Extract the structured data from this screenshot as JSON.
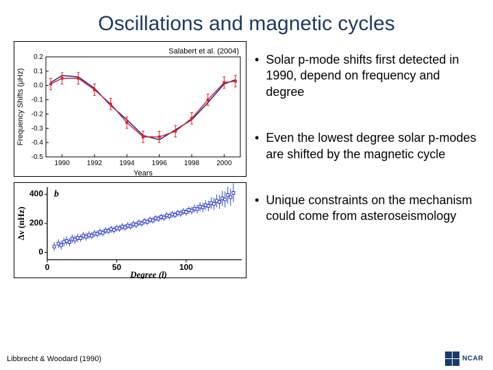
{
  "title": "Oscillations and magnetic cycles",
  "citations": {
    "chart1": "Salabert et al. (2004)",
    "bottom": "Libbrecht & Woodard (1990)"
  },
  "bullets": [
    "Solar p-mode shifts first detected in 1990, depend on frequency and degree",
    "Even the lowest degree solar p-modes are shifted by the magnetic cycle",
    "Unique constraints on the mechanism could come from asteroseismology"
  ],
  "chart1": {
    "type": "line-errorbar",
    "xlabel": "Years",
    "ylabel": "Frequency Shifts (μHz)",
    "xlim": [
      1989,
      2001
    ],
    "ylim": [
      -0.5,
      0.2
    ],
    "xticks": [
      1990,
      1992,
      1994,
      1996,
      1998,
      2000
    ],
    "yticks": [
      -0.5,
      -0.4,
      -0.3,
      -0.2,
      -0.1,
      0.0,
      0.1,
      0.2
    ],
    "series_blue": {
      "color": "#1020a0",
      "x": [
        1989.3,
        1990.0,
        1991.0,
        1992.0,
        1993.0,
        1994.0,
        1995.0,
        1996.0,
        1997.0,
        1998.0,
        1999.0,
        2000.0,
        2000.7
      ],
      "y": [
        0.02,
        0.07,
        0.06,
        -0.02,
        -0.14,
        -0.24,
        -0.35,
        -0.38,
        -0.31,
        -0.24,
        -0.12,
        0.01,
        0.04
      ]
    },
    "series_red": {
      "color": "#e02020",
      "marker": "square",
      "marker_size": 4,
      "err": 0.04,
      "x": [
        1989.3,
        1990.0,
        1991.0,
        1992.0,
        1993.0,
        1994.0,
        1995.0,
        1996.0,
        1997.0,
        1998.0,
        1999.0,
        2000.0,
        2000.7
      ],
      "y": [
        0.01,
        0.05,
        0.05,
        -0.03,
        -0.13,
        -0.26,
        -0.36,
        -0.36,
        -0.32,
        -0.23,
        -0.1,
        0.02,
        0.03
      ]
    }
  },
  "chart2": {
    "type": "scatter-errorbar",
    "panel_label": "b",
    "xlabel": "Degree (l)",
    "ylabel": "Δν (nHz)",
    "xlim": [
      0,
      140
    ],
    "ylim": [
      -50,
      450
    ],
    "xticks": [
      0,
      50,
      100
    ],
    "yticks": [
      0,
      200,
      400
    ],
    "color": "#2030c8",
    "marker": "square-open",
    "marker_size": 4,
    "points": [
      [
        5,
        40,
        30
      ],
      [
        8,
        60,
        30
      ],
      [
        10,
        50,
        30
      ],
      [
        12,
        72,
        30
      ],
      [
        14,
        80,
        30
      ],
      [
        16,
        70,
        28
      ],
      [
        18,
        95,
        28
      ],
      [
        20,
        88,
        28
      ],
      [
        22,
        100,
        28
      ],
      [
        24,
        98,
        26
      ],
      [
        26,
        115,
        26
      ],
      [
        28,
        108,
        26
      ],
      [
        30,
        120,
        26
      ],
      [
        32,
        115,
        25
      ],
      [
        34,
        130,
        25
      ],
      [
        36,
        128,
        25
      ],
      [
        38,
        140,
        25
      ],
      [
        40,
        135,
        24
      ],
      [
        42,
        150,
        24
      ],
      [
        44,
        148,
        24
      ],
      [
        46,
        160,
        24
      ],
      [
        48,
        155,
        24
      ],
      [
        50,
        168,
        24
      ],
      [
        52,
        165,
        23
      ],
      [
        54,
        178,
        23
      ],
      [
        56,
        172,
        23
      ],
      [
        58,
        185,
        23
      ],
      [
        60,
        180,
        23
      ],
      [
        62,
        195,
        23
      ],
      [
        64,
        190,
        22
      ],
      [
        66,
        205,
        22
      ],
      [
        68,
        200,
        22
      ],
      [
        70,
        215,
        22
      ],
      [
        72,
        210,
        22
      ],
      [
        74,
        225,
        22
      ],
      [
        76,
        220,
        22
      ],
      [
        78,
        235,
        22
      ],
      [
        80,
        232,
        22
      ],
      [
        82,
        245,
        22
      ],
      [
        84,
        240,
        22
      ],
      [
        86,
        255,
        22
      ],
      [
        88,
        250,
        22
      ],
      [
        90,
        262,
        23
      ],
      [
        92,
        258,
        23
      ],
      [
        94,
        272,
        23
      ],
      [
        96,
        268,
        24
      ],
      [
        98,
        282,
        24
      ],
      [
        100,
        278,
        25
      ],
      [
        102,
        292,
        26
      ],
      [
        104,
        288,
        27
      ],
      [
        106,
        302,
        28
      ],
      [
        108,
        298,
        29
      ],
      [
        110,
        315,
        30
      ],
      [
        112,
        310,
        32
      ],
      [
        114,
        325,
        34
      ],
      [
        116,
        320,
        36
      ],
      [
        118,
        340,
        40
      ],
      [
        120,
        335,
        42
      ],
      [
        122,
        355,
        45
      ],
      [
        124,
        348,
        48
      ],
      [
        126,
        372,
        52
      ],
      [
        128,
        365,
        55
      ],
      [
        130,
        395,
        58
      ],
      [
        132,
        380,
        60
      ],
      [
        134,
        410,
        65
      ]
    ]
  },
  "logo_text": "NCAR"
}
